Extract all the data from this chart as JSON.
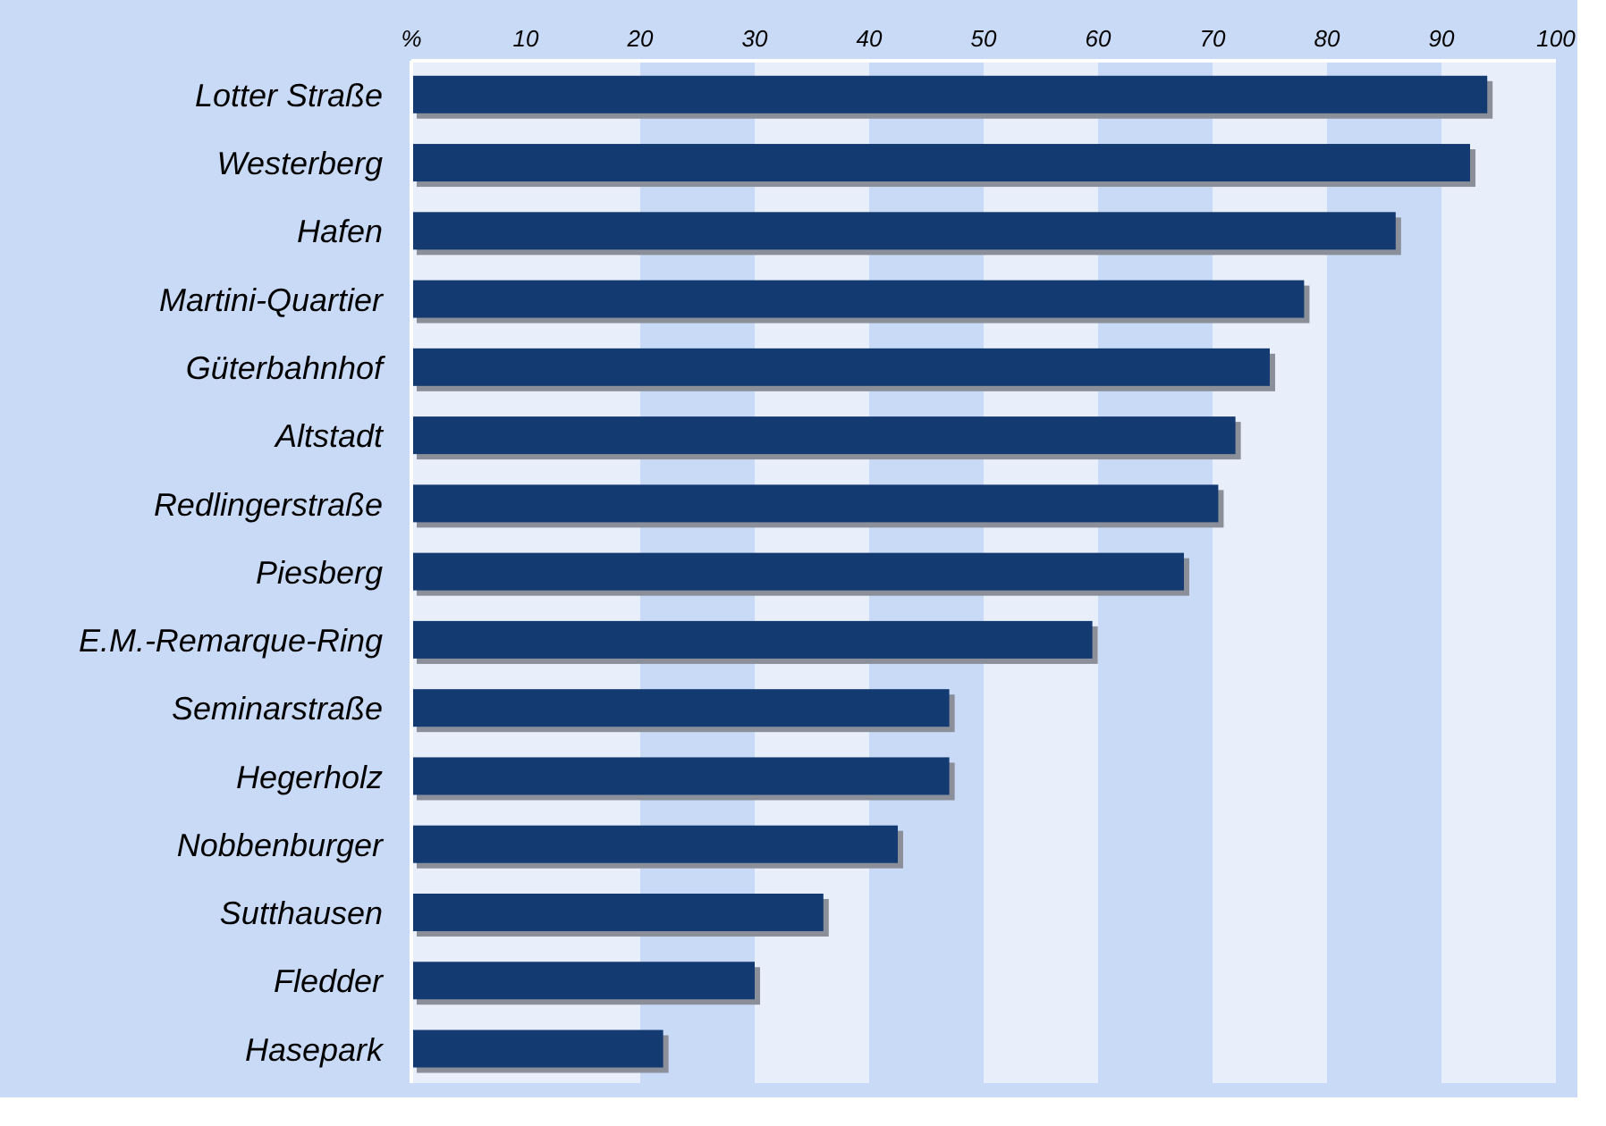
{
  "chart_data": {
    "type": "bar",
    "orientation": "horizontal",
    "categories": [
      "Lotter Straße",
      "Westerberg",
      "Hafen",
      "Martini-Quartier",
      "Güterbahnhof",
      "Altstadt",
      "Redlingerstraße",
      "Piesberg",
      "E.M.-Remarque-Ring",
      "Seminarstraße",
      "Hegerholz",
      "Nobbenburger",
      "Sutthausen",
      "Fledder",
      "Hasepark"
    ],
    "values": [
      94,
      92.5,
      86,
      78,
      75,
      72,
      70.5,
      67.5,
      59.5,
      47,
      47,
      42.5,
      36,
      30,
      22
    ],
    "color": "#143a72",
    "xlim": [
      0,
      100
    ],
    "xticks": [
      {
        "value": 0,
        "label": "%"
      },
      10,
      20,
      30,
      40,
      50,
      60,
      70,
      80,
      90,
      100
    ],
    "bands": [
      {
        "axis": "x",
        "from": 20,
        "to": 30,
        "color": "#c8daf6"
      },
      {
        "axis": "x",
        "from": 40,
        "to": 50,
        "color": "#c8daf6"
      },
      {
        "axis": "x",
        "from": 60,
        "to": 70,
        "color": "#c8daf6"
      },
      {
        "axis": "x",
        "from": 80,
        "to": 90,
        "color": "#c8daf6"
      }
    ]
  }
}
